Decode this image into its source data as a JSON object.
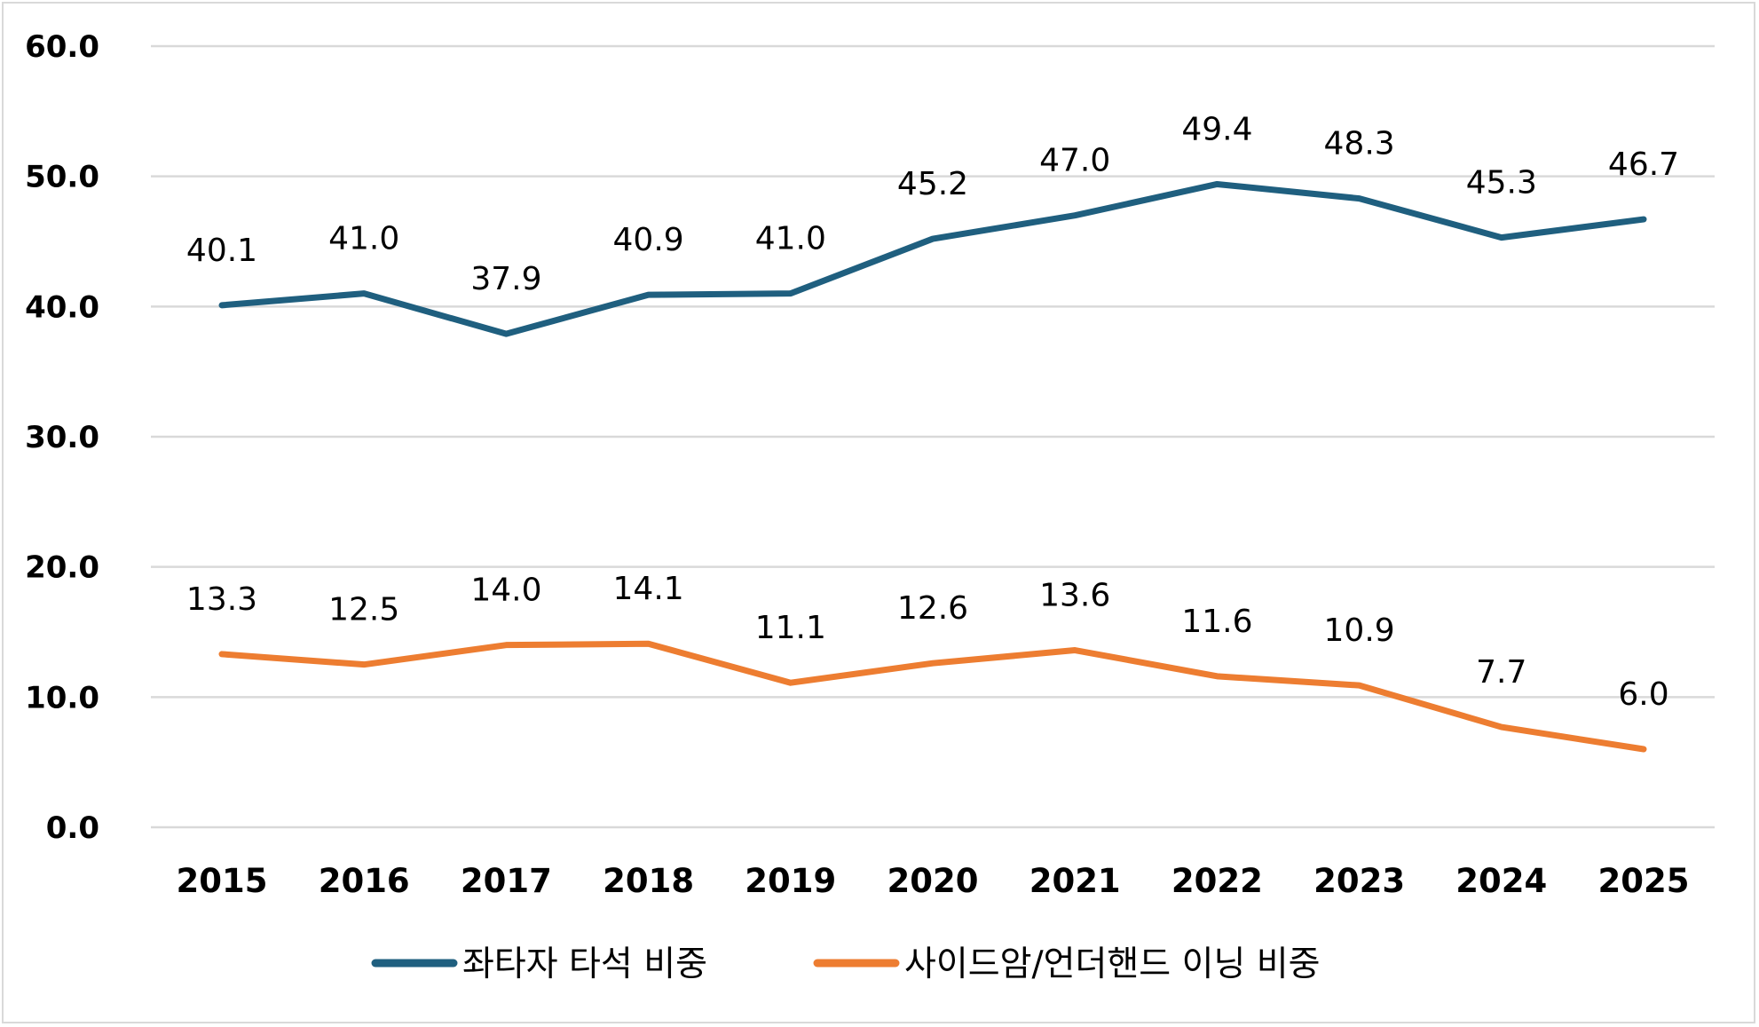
{
  "chart_data": {
    "type": "line",
    "title": "",
    "xlabel": "",
    "ylabel": "",
    "categories": [
      "2015",
      "2016",
      "2017",
      "2018",
      "2019",
      "2020",
      "2021",
      "2022",
      "2023",
      "2024",
      "2025"
    ],
    "ylim": [
      0,
      60
    ],
    "yticks": [
      "0.0",
      "10.0",
      "20.0",
      "30.0",
      "40.0",
      "50.0",
      "60.0"
    ],
    "grid": true,
    "legend_position": "bottom",
    "series": [
      {
        "name": "좌타자 타석 비중",
        "color": "#1f5f7f",
        "values": [
          40.1,
          41.0,
          37.9,
          40.9,
          41.0,
          45.2,
          47.0,
          49.4,
          48.3,
          45.3,
          46.7
        ],
        "labels": [
          "40.1",
          "41.0",
          "37.9",
          "40.9",
          "41.0",
          "45.2",
          "47.0",
          "49.4",
          "48.3",
          "45.3",
          "46.7"
        ]
      },
      {
        "name": "사이드암/언더핸드 이닝 비중",
        "color": "#ed7d31",
        "values": [
          13.3,
          12.5,
          14.0,
          14.1,
          11.1,
          12.6,
          13.6,
          11.6,
          10.9,
          7.7,
          6.0
        ],
        "labels": [
          "13.3",
          "12.5",
          "14.0",
          "14.1",
          "11.1",
          "12.6",
          "13.6",
          "11.6",
          "10.9",
          "7.7",
          "6.0"
        ]
      }
    ]
  }
}
